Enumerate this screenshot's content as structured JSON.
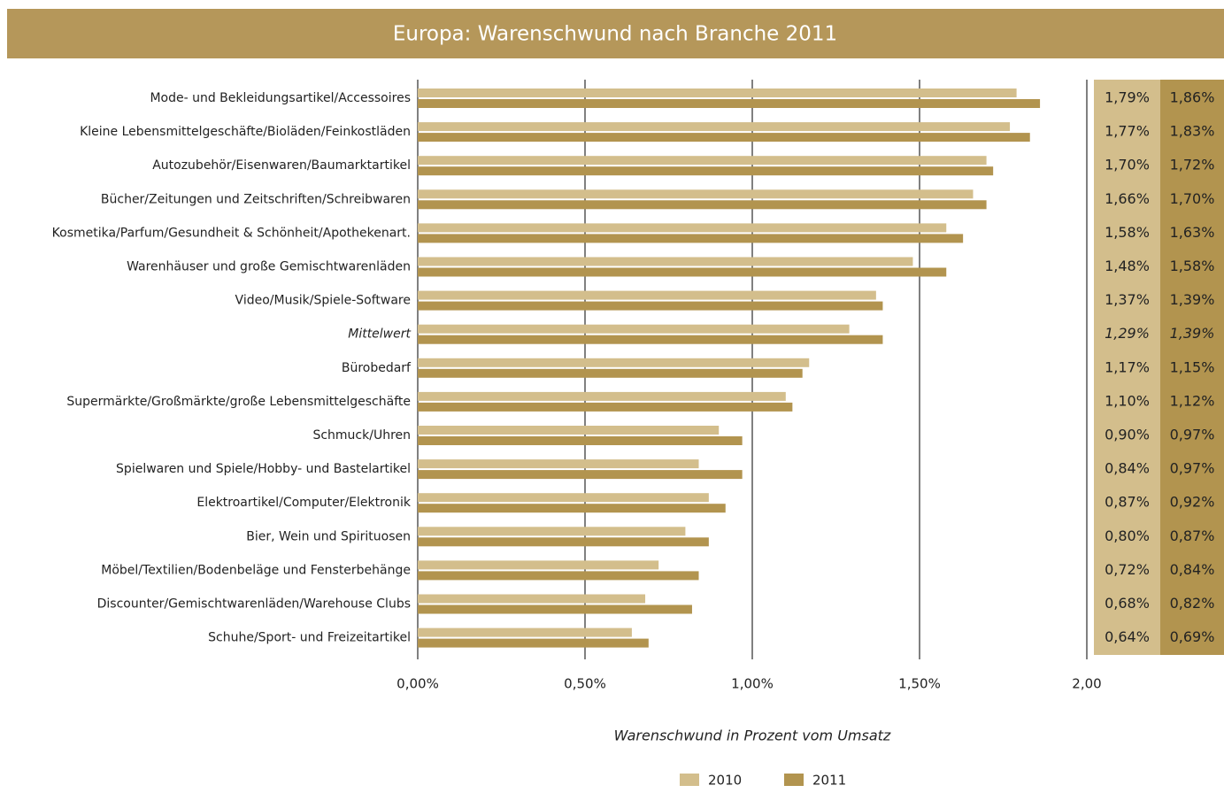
{
  "chart_data": {
    "type": "hbar",
    "title": "Europa: Warenschwund nach Branche 2011",
    "xlabel": "Warenschwund in Prozent vom Umsatz",
    "categories": [
      "Mode- und Bekleidungsartikel/Accessoires",
      "Kleine Lebensmittelgeschäfte/Bioläden/Feinkostläden",
      "Autozubehör/Eisenwaren/Baumarktartikel",
      "Bücher/Zeitungen und Zeitschriften/Schreibwaren",
      "Kosmetika/Parfum/Gesundheit & Schönheit/Apothekenart.",
      "Warenhäuser und große Gemischtwarenläden",
      "Video/Musik/Spiele-Software",
      "Mittelwert",
      "Bürobedarf",
      "Supermärkte/Großmärkte/große Lebensmittelgeschäfte",
      "Schmuck/Uhren",
      "Spielwaren und Spiele/Hobby- und Bastelartikel",
      "Elektroartikel/Computer/Elektronik",
      "Bier, Wein und Spirituosen",
      "Möbel/Textilien/Bodenbeläge und Fensterbehänge",
      "Discounter/Gemischtwarenläden/Warehouse Clubs",
      "Schuhe/Sport- und Freizeitartikel"
    ],
    "italic_category": 7,
    "series": [
      {
        "name": "2010",
        "color": "#d3be8c",
        "values": [
          1.79,
          1.77,
          1.7,
          1.66,
          1.58,
          1.48,
          1.37,
          1.29,
          1.17,
          1.1,
          0.9,
          0.84,
          0.87,
          0.8,
          0.72,
          0.68,
          0.64
        ],
        "value_labels": [
          "1,79%",
          "1,77%",
          "1,70%",
          "1,66%",
          "1,58%",
          "1,48%",
          "1,37%",
          "1,29%",
          "1,17%",
          "1,10%",
          "0,90%",
          "0,84%",
          "0,87%",
          "0,80%",
          "0,72%",
          "0,68%",
          "0,64%"
        ]
      },
      {
        "name": "2011",
        "color": "#b2944f",
        "values": [
          1.86,
          1.83,
          1.72,
          1.7,
          1.63,
          1.58,
          1.39,
          1.39,
          1.15,
          1.12,
          0.97,
          0.97,
          0.92,
          0.87,
          0.84,
          0.82,
          0.69
        ],
        "value_labels": [
          "1,86%",
          "1,83%",
          "1,72%",
          "1,70%",
          "1,63%",
          "1,58%",
          "1,39%",
          "1,39%",
          "1,15%",
          "1,12%",
          "0,97%",
          "0,97%",
          "0,92%",
          "0,87%",
          "0,84%",
          "0,82%",
          "0,69%"
        ]
      }
    ],
    "xlim": [
      0,
      2
    ],
    "xticks": [
      {
        "value": 0,
        "label": "0,00%"
      },
      {
        "value": 0.5,
        "label": "0,50%"
      },
      {
        "value": 1,
        "label": "1,00%"
      },
      {
        "value": 1.5,
        "label": "1,50%"
      },
      {
        "value": 2,
        "label": "2,00"
      }
    ],
    "grid": true,
    "banner_color": "#b5975a"
  }
}
